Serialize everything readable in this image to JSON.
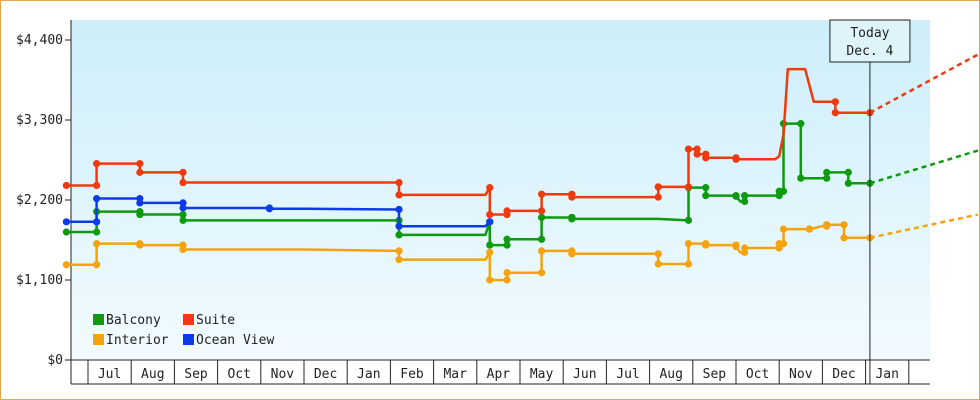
{
  "chart_data": {
    "type": "line",
    "title": "",
    "xlabel": "",
    "ylabel": "",
    "y_ticks": [
      "$0",
      "$1,100",
      "$2,200",
      "$3,300",
      "$4,400"
    ],
    "y_tick_values": [
      0,
      1100,
      2200,
      3300,
      4400
    ],
    "ylim": [
      0,
      5100
    ],
    "grid": false,
    "legend_position": "bottom-left",
    "months": [
      "Jul",
      "Aug",
      "Sep",
      "Oct",
      "Nov",
      "Dec",
      "Jan",
      "Feb",
      "Mar",
      "Apr",
      "May",
      "Jun",
      "Jul",
      "Aug",
      "Sep",
      "Oct",
      "Nov",
      "Dec",
      "Jan"
    ],
    "today_marker": {
      "line1": "Today",
      "line2": "Dec. 4",
      "x": 18.1
    },
    "series": [
      {
        "name": "Balcony",
        "color": "#0e9a0e",
        "points": [
          [
            -0.5,
            1760
          ],
          [
            0.2,
            1760
          ],
          [
            0.2,
            2040
          ],
          [
            1.2,
            2040
          ],
          [
            1.2,
            2000
          ],
          [
            2.2,
            2000
          ],
          [
            2.2,
            1920
          ],
          [
            5.0,
            1920
          ],
          [
            7.2,
            1920
          ],
          [
            7.2,
            1720
          ],
          [
            9.2,
            1720
          ],
          [
            9.3,
            1900
          ],
          [
            9.3,
            1580
          ],
          [
            9.7,
            1580
          ],
          [
            9.7,
            1660
          ],
          [
            10.5,
            1660
          ],
          [
            10.5,
            1960
          ],
          [
            11.2,
            1960
          ],
          [
            11.2,
            1960
          ],
          [
            11.2,
            1940
          ],
          [
            13.2,
            1940
          ],
          [
            13.9,
            1920
          ],
          [
            13.9,
            2370
          ],
          [
            14.3,
            2370
          ],
          [
            14.3,
            2260
          ],
          [
            15.0,
            2260
          ],
          [
            15.0,
            2250
          ],
          [
            15.1,
            2180
          ],
          [
            15.2,
            2180
          ],
          [
            15.2,
            2260
          ],
          [
            16.0,
            2260
          ],
          [
            16.0,
            2320
          ],
          [
            16.1,
            2320
          ],
          [
            16.1,
            3250
          ],
          [
            16.5,
            3250
          ],
          [
            16.5,
            2500
          ],
          [
            17.1,
            2500
          ],
          [
            17.1,
            2580
          ],
          [
            17.6,
            2580
          ],
          [
            17.6,
            2430
          ],
          [
            18.1,
            2430
          ]
        ]
      },
      {
        "name": "Suite",
        "color": "#ee3a0e",
        "points": [
          [
            -0.5,
            2400
          ],
          [
            0.2,
            2400
          ],
          [
            0.2,
            2700
          ],
          [
            1.2,
            2700
          ],
          [
            1.2,
            2580
          ],
          [
            2.2,
            2580
          ],
          [
            2.2,
            2440
          ],
          [
            4.2,
            2440
          ],
          [
            7.2,
            2440
          ],
          [
            7.2,
            2270
          ],
          [
            9.2,
            2270
          ],
          [
            9.3,
            2370
          ],
          [
            9.3,
            2000
          ],
          [
            9.7,
            2000
          ],
          [
            9.7,
            2050
          ],
          [
            10.5,
            2050
          ],
          [
            10.5,
            2280
          ],
          [
            11.2,
            2280
          ],
          [
            11.2,
            2240
          ],
          [
            13.2,
            2240
          ],
          [
            13.2,
            2380
          ],
          [
            13.9,
            2380
          ],
          [
            13.9,
            2900
          ],
          [
            14.1,
            2900
          ],
          [
            14.1,
            2830
          ],
          [
            14.3,
            2830
          ],
          [
            14.3,
            2780
          ],
          [
            15.0,
            2780
          ],
          [
            15.0,
            2760
          ],
          [
            15.9,
            2760
          ],
          [
            16.0,
            2800
          ],
          [
            16.1,
            3100
          ],
          [
            16.2,
            4000
          ],
          [
            16.6,
            4000
          ],
          [
            16.8,
            3550
          ],
          [
            17.3,
            3550
          ],
          [
            17.3,
            3400
          ],
          [
            17.8,
            3400
          ],
          [
            18.1,
            3400
          ]
        ]
      },
      {
        "name": "Interior",
        "color": "#f5a20f",
        "points": [
          [
            -0.5,
            1310
          ],
          [
            0.2,
            1310
          ],
          [
            0.2,
            1600
          ],
          [
            1.2,
            1600
          ],
          [
            1.2,
            1580
          ],
          [
            2.2,
            1580
          ],
          [
            2.2,
            1520
          ],
          [
            5.0,
            1520
          ],
          [
            7.2,
            1500
          ],
          [
            7.2,
            1380
          ],
          [
            9.2,
            1380
          ],
          [
            9.3,
            1480
          ],
          [
            9.3,
            1100
          ],
          [
            9.7,
            1100
          ],
          [
            9.7,
            1200
          ],
          [
            10.5,
            1200
          ],
          [
            10.5,
            1500
          ],
          [
            11.2,
            1500
          ],
          [
            11.2,
            1460
          ],
          [
            13.2,
            1460
          ],
          [
            13.2,
            1320
          ],
          [
            13.9,
            1320
          ],
          [
            13.9,
            1600
          ],
          [
            14.3,
            1600
          ],
          [
            14.3,
            1580
          ],
          [
            15.0,
            1580
          ],
          [
            15.0,
            1560
          ],
          [
            15.1,
            1480
          ],
          [
            15.2,
            1480
          ],
          [
            15.2,
            1540
          ],
          [
            16.0,
            1540
          ],
          [
            16.0,
            1600
          ],
          [
            16.1,
            1600
          ],
          [
            16.1,
            1800
          ],
          [
            16.7,
            1800
          ],
          [
            16.7,
            1800
          ],
          [
            17.0,
            1840
          ],
          [
            17.1,
            1840
          ],
          [
            17.1,
            1860
          ],
          [
            17.5,
            1860
          ],
          [
            17.5,
            1680
          ],
          [
            18.1,
            1680
          ]
        ]
      },
      {
        "name": "Ocean View",
        "color": "#0c3ce8",
        "points": [
          [
            -0.5,
            1900
          ],
          [
            0.2,
            1900
          ],
          [
            0.2,
            2220
          ],
          [
            1.2,
            2220
          ],
          [
            1.2,
            2160
          ],
          [
            2.2,
            2160
          ],
          [
            2.2,
            2090
          ],
          [
            4.2,
            2090
          ],
          [
            4.2,
            2080
          ],
          [
            5.0,
            2080
          ],
          [
            7.2,
            2070
          ],
          [
            7.2,
            1840
          ],
          [
            9.2,
            1840
          ],
          [
            9.3,
            1900
          ]
        ]
      }
    ],
    "projections": [
      {
        "name": "Suite",
        "from": [
          18.1,
          3400
        ],
        "to": [
          20.6,
          4200
        ]
      },
      {
        "name": "Balcony",
        "from": [
          18.1,
          2430
        ],
        "to": [
          20.6,
          2880
        ]
      },
      {
        "name": "Interior",
        "from": [
          18.1,
          1680
        ],
        "to": [
          20.6,
          2000
        ]
      }
    ]
  }
}
